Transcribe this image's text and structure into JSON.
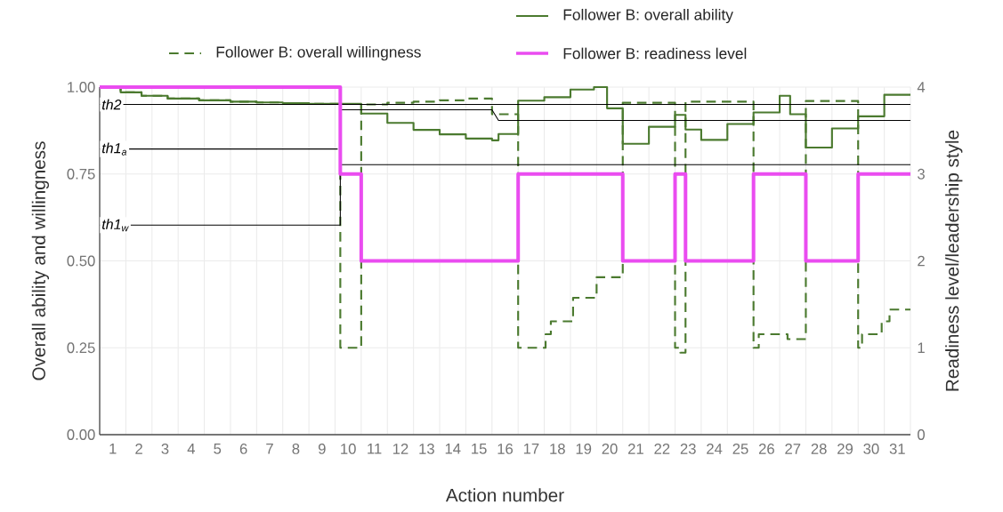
{
  "chart_data": {
    "type": "step",
    "xlabel": "Action number",
    "ylabel": "Overall ability and willingness",
    "y2label": "Readiness level/leadership style",
    "xlim": [
      0.5,
      31.5
    ],
    "xticks": [
      1,
      2,
      3,
      4,
      5,
      6,
      7,
      8,
      9,
      10,
      11,
      12,
      13,
      14,
      15,
      16,
      17,
      18,
      19,
      20,
      21,
      22,
      23,
      24,
      25,
      26,
      27,
      28,
      29,
      30,
      31
    ],
    "ylim": [
      0,
      1
    ],
    "yticks": [
      {
        "value": 0,
        "label": "0.00"
      },
      {
        "value": 0.25,
        "label": "0.25"
      },
      {
        "value": 0.5,
        "label": "0.50"
      },
      {
        "value": 0.75,
        "label": "0.75"
      },
      {
        "value": 1,
        "label": "1.00"
      }
    ],
    "y2lim": [
      0,
      4
    ],
    "y2ticks": [
      0,
      1,
      2,
      3,
      4
    ],
    "grid": true,
    "legend": "top",
    "series": [
      {
        "name": "Follower B: overall ability",
        "color": "#4b7a2f",
        "line_style": "solid",
        "x": [
          0.5,
          1.3,
          2.1,
          3.1,
          4.3,
          5.5,
          6.5,
          7.5,
          8.5,
          10.5,
          11.5,
          12.5,
          13.5,
          14.5,
          15.5,
          15.75,
          16.5,
          17.5,
          18.5,
          19.4,
          19.9,
          20.5,
          21.5,
          22.5,
          22.9,
          23.5,
          24.5,
          25.5,
          26.5,
          26.9,
          27.5,
          28.5,
          29.5,
          30.5,
          31.5
        ],
        "values": [
          1.0,
          0.985,
          0.975,
          0.967,
          0.962,
          0.958,
          0.956,
          0.954,
          0.952,
          0.924,
          0.897,
          0.877,
          0.864,
          0.852,
          0.847,
          0.865,
          0.961,
          0.971,
          0.993,
          1.0,
          0.939,
          0.837,
          0.886,
          0.92,
          0.878,
          0.848,
          0.894,
          0.927,
          0.975,
          0.922,
          0.826,
          0.881,
          0.916,
          0.978,
          0.978
        ]
      },
      {
        "name": "Follower B: overall willingness",
        "color": "#4b7a2f",
        "line_style": "dashed",
        "x": [
          0.5,
          1.3,
          2.1,
          3.1,
          4.3,
          5.5,
          6.5,
          7.5,
          8.5,
          9.7,
          10.5,
          11.5,
          12.5,
          13.5,
          14.5,
          15.5,
          16.5,
          17.55,
          17.75,
          18.6,
          19.5,
          20.5,
          22.5,
          22.7,
          22.9,
          25.5,
          25.7,
          26.8,
          27.5,
          29.5,
          29.65,
          30.4,
          30.7,
          31.5
        ],
        "values": [
          1.0,
          0.985,
          0.975,
          0.967,
          0.962,
          0.958,
          0.956,
          0.954,
          0.952,
          0.25,
          0.95,
          0.955,
          0.958,
          0.962,
          0.967,
          0.922,
          0.25,
          0.289,
          0.326,
          0.394,
          0.453,
          0.955,
          0.25,
          0.236,
          0.958,
          0.25,
          0.289,
          0.275,
          0.96,
          0.25,
          0.289,
          0.326,
          0.36,
          0.36
        ]
      },
      {
        "name": "Follower B: readiness level",
        "color": "#ea4cf0",
        "line_style": "solid",
        "axis": "y2",
        "x": [
          0.5,
          9.7,
          10.5,
          16.5,
          20.5,
          22.5,
          22.9,
          25.5,
          27.5,
          29.5,
          31.5
        ],
        "values": [
          4,
          3,
          2,
          3,
          2,
          3,
          2,
          3,
          2,
          3,
          3
        ]
      },
      {
        "name": "th2",
        "type": "line",
        "color": "#000000",
        "line_style": "solid",
        "x": [
          0.5,
          31.5
        ],
        "values": [
          0.95,
          0.95
        ]
      },
      {
        "name": "th1$_{a}$",
        "type": "line",
        "color": "#000000",
        "line_style": "solid",
        "x": [
          0.5,
          9.6,
          9.65,
          9.7,
          15.5,
          15.75,
          31.5
        ],
        "values": [
          0.822,
          0.822,
          null,
          0.935,
          0.935,
          0.904,
          0.904
        ]
      },
      {
        "name": "th1$_{w}$",
        "type": "line",
        "color": "#000000",
        "line_style": "solid",
        "x": [
          0.5,
          9.7,
          9.7,
          31.5
        ],
        "values": [
          0.603,
          0.603,
          0.777,
          0.777
        ]
      }
    ]
  }
}
